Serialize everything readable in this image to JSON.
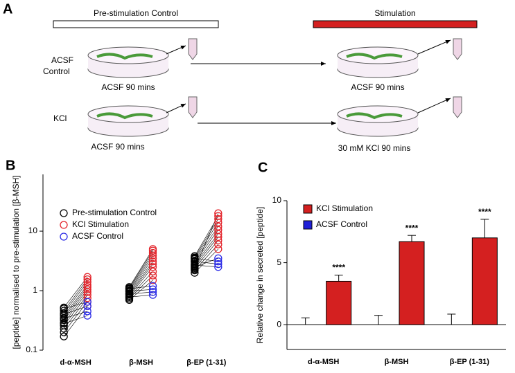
{
  "figure": {
    "panel_a": {
      "label": "A",
      "pre_bar": "Pre-stimulation Control",
      "stim_bar": "Stimulation",
      "rows": [
        {
          "label_lines": [
            "ACSF",
            "Control"
          ],
          "pre": "ACSF 90 mins",
          "stim": "ACSF 90 mins"
        },
        {
          "label_lines": [
            "KCl"
          ],
          "pre": "ACSF 90 mins",
          "stim": "30 mM KCl 90 mins"
        }
      ]
    }
  },
  "chart_data": [
    {
      "type": "scatter",
      "panel_label": "B",
      "y_label": "[peptide] normalised to pre-stimulation [β-MSH]",
      "categories": [
        "d-α-MSH",
        "β-MSH",
        "β-EP (1-31)"
      ],
      "log_scale": true,
      "ylim": [
        0.1,
        90
      ],
      "yticks": [
        0.1,
        1,
        10
      ],
      "legend": "upper left",
      "series": [
        {
          "name": "Pre-stimulation Control",
          "color": "#000000",
          "values": [
            [
              0.17,
              0.2,
              0.23,
              0.26,
              0.29,
              0.32,
              0.35,
              0.38,
              0.42,
              0.46,
              0.52,
              0.28,
              0.34,
              0.4,
              0.5
            ],
            [
              0.7,
              0.74,
              0.78,
              0.82,
              0.86,
              0.9,
              0.95,
              1.0,
              1.05,
              1.1,
              1.15,
              0.78,
              0.88,
              0.98,
              1.08
            ],
            [
              2.0,
              2.2,
              2.4,
              2.6,
              2.8,
              3.0,
              3.2,
              3.4,
              3.6,
              3.8,
              2.3,
              2.7,
              3.1,
              3.5,
              2.5
            ]
          ]
        },
        {
          "name": "KCl Stimulation",
          "color": "#e3242b",
          "values": [
            [
              0.55,
              0.65,
              0.75,
              0.85,
              0.95,
              1.05,
              1.15,
              1.25,
              1.4,
              1.55,
              1.7
            ],
            [
              1.5,
              1.8,
              2.1,
              2.5,
              2.8,
              3.1,
              3.5,
              3.9,
              4.3,
              4.7,
              5.0
            ],
            [
              5,
              6,
              7,
              8,
              9,
              10.5,
              12,
              14,
              16,
              18,
              20
            ]
          ]
        },
        {
          "name": "ACSF Control",
          "color": "#2a2ae6",
          "values": [
            [
              0.38,
              0.45,
              0.55,
              0.65
            ],
            [
              0.85,
              0.95,
              1.05,
              1.2
            ],
            [
              2.5,
              2.8,
              3.1,
              3.5
            ]
          ]
        }
      ]
    },
    {
      "type": "bar",
      "panel_label": "C",
      "y_label": "Relative change in secreted [peptide]",
      "categories": [
        "d-α-MSH",
        "β-MSH",
        "β-EP (1-31)"
      ],
      "ylim": [
        -2,
        10
      ],
      "yticks": [
        0,
        5,
        10
      ],
      "legend": "upper left",
      "series": [
        {
          "name": "ACSF Control",
          "color": "#2020d8",
          "values": [
            0,
            0,
            0
          ],
          "errors": [
            0.55,
            0.75,
            0.85
          ]
        },
        {
          "name": "KCl Stimulation",
          "color": "#d42020",
          "values": [
            3.5,
            6.7,
            7.0
          ],
          "errors": [
            0.5,
            0.5,
            1.5
          ],
          "annotations": [
            "****",
            "****",
            "****"
          ]
        }
      ]
    }
  ]
}
